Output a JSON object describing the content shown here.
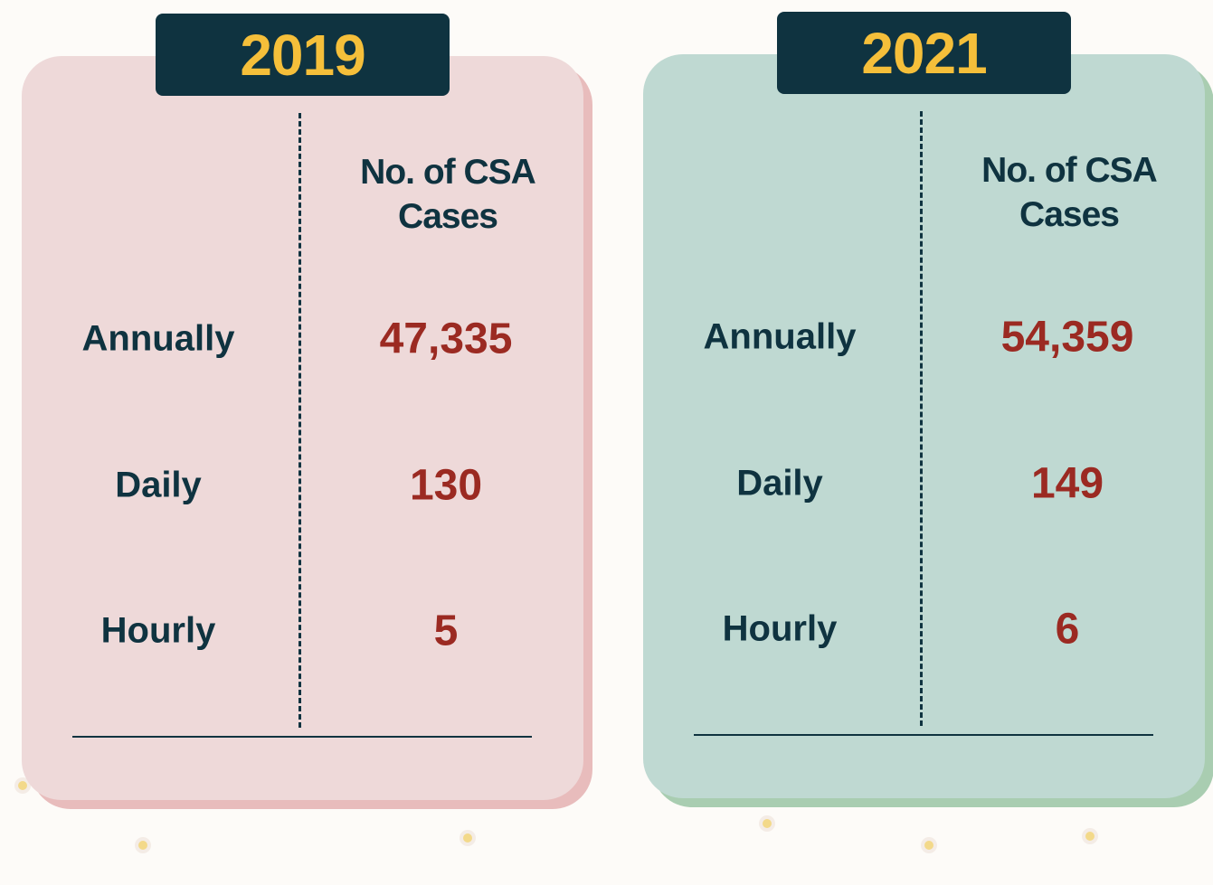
{
  "cards": [
    {
      "year": "2019",
      "header": "No. of CSA Cases",
      "rows": [
        {
          "label": "Annually",
          "value": "47,335"
        },
        {
          "label": "Daily",
          "value": "130"
        },
        {
          "label": "Hourly",
          "value": "5"
        }
      ]
    },
    {
      "year": "2021",
      "header": "No. of CSA Cases",
      "rows": [
        {
          "label": "Annually",
          "value": "54,359"
        },
        {
          "label": "Daily",
          "value": "149"
        },
        {
          "label": "Hourly",
          "value": "6"
        }
      ]
    }
  ]
}
